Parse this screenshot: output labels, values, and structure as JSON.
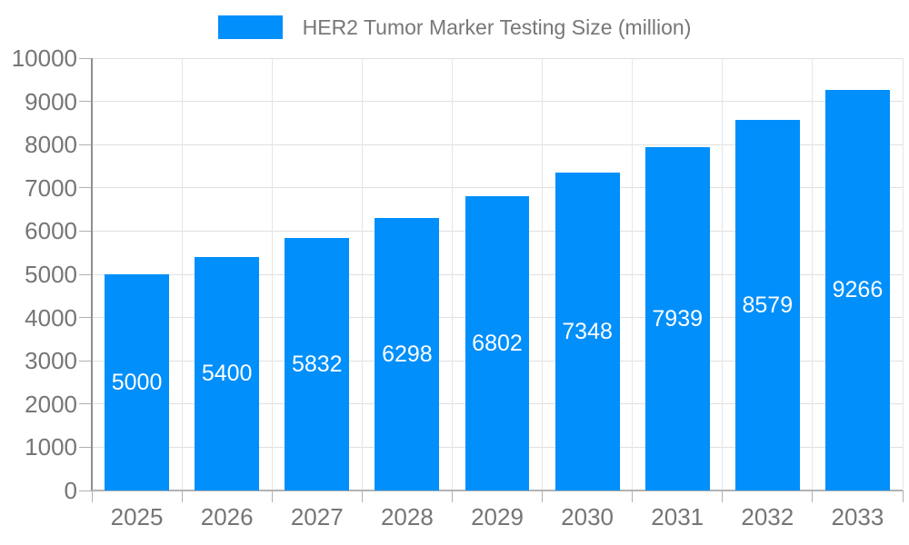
{
  "legend": {
    "label": "HER2 Tumor Marker Testing Size (million)"
  },
  "chart_data": {
    "type": "bar",
    "title": "HER2 Tumor Marker Testing Size (million)",
    "categories": [
      "2025",
      "2026",
      "2027",
      "2028",
      "2029",
      "2030",
      "2031",
      "2032",
      "2033"
    ],
    "values": [
      5000,
      5400,
      5832,
      6298,
      6802,
      7348,
      7939,
      8579,
      9266
    ],
    "series": [
      {
        "name": "HER2 Tumor Marker Testing Size (million)",
        "values": [
          5000,
          5400,
          5832,
          6298,
          6802,
          7348,
          7939,
          8579,
          9266
        ]
      }
    ],
    "xlabel": "",
    "ylabel": "",
    "ylim": [
      0,
      10000
    ],
    "ytick_step": 1000,
    "ytick_labels": [
      "0",
      "1000",
      "2000",
      "3000",
      "4000",
      "5000",
      "6000",
      "7000",
      "8000",
      "9000",
      "10000"
    ],
    "grid": "on",
    "legend_position": "top-center",
    "data_labels": "inside-center-white",
    "colors": {
      "bar": "#008FFB",
      "bar_label_text": "#ffffff",
      "axis_text": "#757575",
      "legend_text": "#777777",
      "gridline": "#e0e0e0",
      "axis_line": "#8f8f8f",
      "baseline": "#b3b3b3",
      "background": "#ffffff"
    }
  }
}
